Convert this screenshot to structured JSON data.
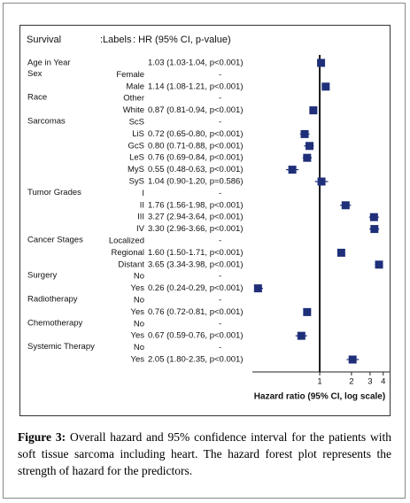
{
  "chart_data": {
    "type": "forest",
    "header": {
      "left": "Survival",
      "labels": ":Labels",
      "hr": ": HR (95% CI, p-value)"
    },
    "xlabel": "Hazard ratio (95% CI, log scale)",
    "log_scale": true,
    "xlim": [
      0.23,
      4.6
    ],
    "xticks": [
      1,
      2,
      3,
      4
    ],
    "color": "#1f2f7a",
    "rows": [
      {
        "group": "Age in Year",
        "text": "1.03 (1.03-1.04, p<0.001)",
        "hr": 1.03,
        "lo": 1.03,
        "hi": 1.04
      },
      {
        "group": "Sex",
        "level": "Female",
        "text": "-"
      },
      {
        "level": "Male",
        "text": "1.14 (1.08-1.21, p<0.001)",
        "hr": 1.14,
        "lo": 1.08,
        "hi": 1.21
      },
      {
        "group": "Race",
        "level": "Other",
        "text": "-"
      },
      {
        "level": "White",
        "text": "0.87 (0.81-0.94, p<0.001)",
        "hr": 0.87,
        "lo": 0.81,
        "hi": 0.94
      },
      {
        "group": "Sarcomas",
        "level": "ScS",
        "text": "-"
      },
      {
        "level": "LiS",
        "text": "0.72 (0.65-0.80, p<0.001)",
        "hr": 0.72,
        "lo": 0.65,
        "hi": 0.8
      },
      {
        "level": "GcS",
        "text": "0.80 (0.71-0.88, p<0.001)",
        "hr": 0.8,
        "lo": 0.71,
        "hi": 0.88
      },
      {
        "level": "LeS",
        "text": "0.76 (0.69-0.84, p<0.001)",
        "hr": 0.76,
        "lo": 0.69,
        "hi": 0.84
      },
      {
        "level": "MyS",
        "text": "0.55 (0.48-0.63, p<0.001)",
        "hr": 0.55,
        "lo": 0.48,
        "hi": 0.63
      },
      {
        "level": "SyS",
        "text": "1.04 (0.90-1.20, p=0.586)",
        "hr": 1.04,
        "lo": 0.9,
        "hi": 1.2
      },
      {
        "group": "Tumor Grades",
        "level": "I",
        "text": "-"
      },
      {
        "level": "II",
        "text": "1.76 (1.56-1.98, p<0.001)",
        "hr": 1.76,
        "lo": 1.56,
        "hi": 1.98
      },
      {
        "level": "III",
        "text": "3.27 (2.94-3.64, p<0.001)",
        "hr": 3.27,
        "lo": 2.94,
        "hi": 3.64
      },
      {
        "level": "IV",
        "text": "3.30 (2.96-3.66, p<0.001)",
        "hr": 3.3,
        "lo": 2.96,
        "hi": 3.66
      },
      {
        "group": "Cancer Stages",
        "level": "Localized",
        "text": "-"
      },
      {
        "level": "Regional",
        "text": "1.60 (1.50-1.71, p<0.001)",
        "hr": 1.6,
        "lo": 1.5,
        "hi": 1.71
      },
      {
        "level": "Distant",
        "text": "3.65 (3.34-3.98, p<0.001)",
        "hr": 3.65,
        "lo": 3.34,
        "hi": 3.98
      },
      {
        "group": "Surgery",
        "level": "No",
        "text": "-"
      },
      {
        "level": "Yes",
        "text": "0.26 (0.24-0.29, p<0.001)",
        "hr": 0.26,
        "lo": 0.24,
        "hi": 0.29
      },
      {
        "group": "Radiotherapy",
        "level": "No",
        "text": "-"
      },
      {
        "level": "Yes",
        "text": "0.76 (0.72-0.81, p<0.001)",
        "hr": 0.76,
        "lo": 0.72,
        "hi": 0.81
      },
      {
        "group": "Chemotherapy",
        "level": "No",
        "text": "-"
      },
      {
        "level": "Yes",
        "text": "0.67 (0.59-0.76, p<0.001)",
        "hr": 0.67,
        "lo": 0.59,
        "hi": 0.76
      },
      {
        "group": "Systemic Therapy",
        "level": "No",
        "text": "-"
      },
      {
        "level": "Yes",
        "text": "2.05 (1.80-2.35, p<0.001)",
        "hr": 2.05,
        "lo": 1.8,
        "hi": 2.35
      }
    ]
  },
  "caption": {
    "label": "Figure 3:",
    "text": "Overall hazard and 95% confidence interval for the patients with soft tissue sarcoma including heart. The hazard forest plot represents the strength of hazard for the predictors."
  }
}
